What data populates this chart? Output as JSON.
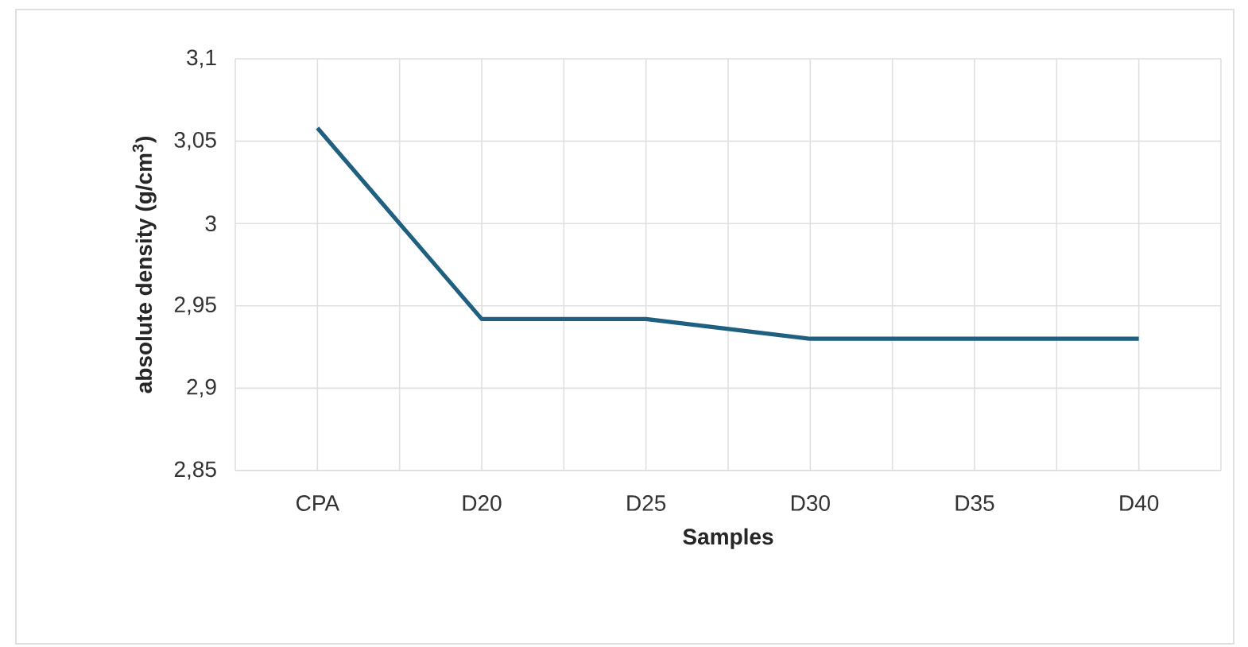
{
  "chart_data": {
    "type": "line",
    "xlabel": "Samples",
    "ylabel": "absolute density (g/cm$^{3}$)",
    "categories": [
      "CPA",
      "D20",
      "D25",
      "D30",
      "D35",
      "D40"
    ],
    "series": [
      {
        "color": "#1f5f80",
        "values": [
          3.058,
          2.942,
          2.942,
          2.93,
          2.93,
          2.93
        ]
      }
    ],
    "ylim": [
      2.85,
      3.1
    ],
    "yticks": [
      {
        "value": 2.85,
        "label": "2,85"
      },
      {
        "value": 2.9,
        "label": "2,9"
      },
      {
        "value": 2.95,
        "label": "2,95"
      },
      {
        "value": 3,
        "label": "3"
      },
      {
        "value": 3.05,
        "label": "3,05"
      },
      {
        "value": 3.1,
        "label": "3,1"
      }
    ],
    "grid": true,
    "marker": "none",
    "line_style": "solid"
  }
}
